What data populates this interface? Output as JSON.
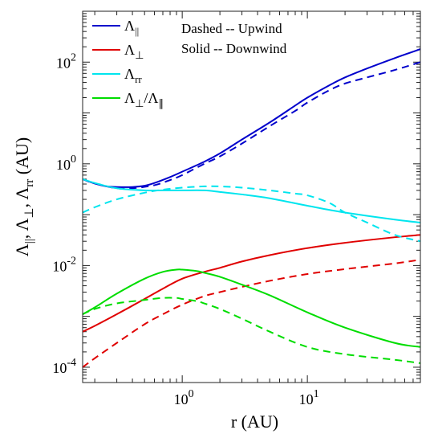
{
  "chart_data": {
    "type": "line",
    "xscale": "log",
    "yscale": "log",
    "xlim": [
      0.16,
      80
    ],
    "ylim": [
      5e-05,
      1000
    ],
    "xticks": [
      {
        "value": 1,
        "base": "10",
        "exp": "0"
      },
      {
        "value": 10,
        "base": "10",
        "exp": "1"
      }
    ],
    "yticks": [
      {
        "value": 0.0001,
        "base": "10",
        "exp": "-4"
      },
      {
        "value": 0.01,
        "base": "10",
        "exp": "-2"
      },
      {
        "value": 1,
        "base": "10",
        "exp": "0"
      },
      {
        "value": 100,
        "base": "10",
        "exp": "2"
      }
    ],
    "xlabel": "r (AU)",
    "ylabel": "Λ||, Λ⊥, Λrr (AU)",
    "annotations": [
      "Dashed -- Upwind",
      "Solid -- Downwind"
    ],
    "legend_position": "top-left",
    "series": [
      {
        "name": "Λ||",
        "legend_base": "Λ",
        "legend_sub": "||",
        "color": "#0000cc",
        "style": "solid",
        "x": [
          0.16,
          0.2,
          0.25,
          0.3,
          0.4,
          0.5,
          0.6,
          0.8,
          1,
          1.5,
          2,
          3,
          5,
          8,
          10,
          15,
          20,
          30,
          50,
          80
        ],
        "y": [
          0.5,
          0.41,
          0.36,
          0.35,
          0.35,
          0.37,
          0.42,
          0.55,
          0.7,
          1.1,
          1.6,
          3.0,
          6.5,
          14,
          20,
          35,
          50,
          75,
          120,
          180
        ]
      },
      {
        "name": "Λ|| upwind",
        "color": "#0000cc",
        "style": "dashed",
        "x": [
          0.16,
          0.2,
          0.3,
          0.4,
          0.6,
          0.8,
          1,
          1.5,
          2,
          3,
          5,
          8,
          10,
          15,
          20,
          30,
          50,
          80
        ],
        "y": [
          0.5,
          0.41,
          0.33,
          0.33,
          0.38,
          0.48,
          0.6,
          1.0,
          1.4,
          2.5,
          5.5,
          11,
          16,
          28,
          38,
          50,
          70,
          100
        ]
      },
      {
        "name": "Λ⊥",
        "legend_base": "Λ",
        "legend_sub": "⊥",
        "color": "#e00000",
        "style": "solid",
        "x": [
          0.16,
          0.2,
          0.3,
          0.5,
          0.7,
          1,
          1.5,
          2,
          3,
          5,
          10,
          20,
          50,
          80
        ],
        "y": [
          0.0005,
          0.00065,
          0.0011,
          0.0022,
          0.0035,
          0.0055,
          0.0075,
          0.009,
          0.012,
          0.016,
          0.022,
          0.028,
          0.036,
          0.04
        ]
      },
      {
        "name": "Λ⊥ upwind",
        "color": "#e00000",
        "style": "dashed",
        "x": [
          0.16,
          0.2,
          0.3,
          0.5,
          0.7,
          1,
          1.5,
          2,
          3,
          5,
          10,
          20,
          50,
          80
        ],
        "y": [
          0.0001,
          0.00015,
          0.0003,
          0.0007,
          0.0011,
          0.0017,
          0.0025,
          0.003,
          0.0038,
          0.005,
          0.0068,
          0.0085,
          0.011,
          0.013
        ]
      },
      {
        "name": "Λrr",
        "legend_base": "Λ",
        "legend_sub": "rr",
        "color": "#00e5ee",
        "style": "solid",
        "x": [
          0.16,
          0.2,
          0.3,
          0.5,
          0.7,
          1,
          1.5,
          2,
          3,
          5,
          10,
          20,
          50,
          80
        ],
        "y": [
          0.5,
          0.42,
          0.33,
          0.3,
          0.3,
          0.3,
          0.3,
          0.28,
          0.25,
          0.21,
          0.15,
          0.11,
          0.08,
          0.07
        ]
      },
      {
        "name": "Λrr upwind",
        "color": "#00e5ee",
        "style": "dashed",
        "x": [
          0.16,
          0.2,
          0.3,
          0.5,
          0.7,
          1,
          1.5,
          2,
          3,
          5,
          8,
          10,
          15,
          20,
          30,
          50,
          80
        ],
        "y": [
          0.11,
          0.14,
          0.2,
          0.27,
          0.31,
          0.34,
          0.36,
          0.36,
          0.34,
          0.3,
          0.26,
          0.24,
          0.17,
          0.11,
          0.07,
          0.04,
          0.03
        ]
      },
      {
        "name": "Λ⊥/Λ∥",
        "legend_base": "Λ",
        "legend_sub": "⊥",
        "legend_mid": "/Λ",
        "legend_sub2": "∥",
        "color": "#00dd00",
        "style": "solid",
        "x": [
          0.16,
          0.2,
          0.3,
          0.5,
          0.7,
          0.9,
          1,
          1.3,
          1.5,
          2,
          3,
          5,
          10,
          20,
          50,
          80
        ],
        "y": [
          0.0011,
          0.0015,
          0.0028,
          0.0055,
          0.0075,
          0.0083,
          0.0083,
          0.0078,
          0.0072,
          0.006,
          0.0042,
          0.0026,
          0.0012,
          0.0006,
          0.0003,
          0.00025
        ]
      },
      {
        "name": "Λ⊥/Λ∥ upwind",
        "color": "#00dd00",
        "style": "dashed",
        "x": [
          0.16,
          0.2,
          0.3,
          0.5,
          0.7,
          0.9,
          1,
          1.3,
          1.5,
          2,
          3,
          5,
          10,
          20,
          50,
          80
        ],
        "y": [
          0.0011,
          0.0014,
          0.0018,
          0.0021,
          0.0023,
          0.0023,
          0.0022,
          0.002,
          0.0018,
          0.0014,
          0.0009,
          0.0005,
          0.00025,
          0.00018,
          0.00014,
          0.00012
        ]
      }
    ]
  }
}
